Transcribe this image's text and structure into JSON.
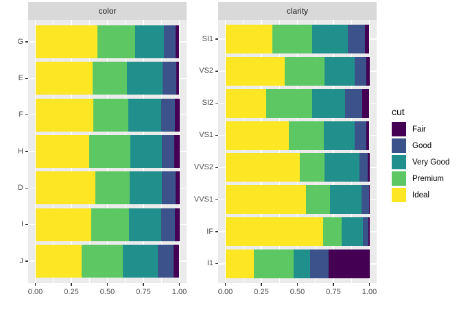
{
  "legend": {
    "title": "cut",
    "entries": [
      {
        "label": "Fair",
        "color": "#440154"
      },
      {
        "label": "Good",
        "color": "#3B528B"
      },
      {
        "label": "Very Good",
        "color": "#21908C"
      },
      {
        "label": "Premium",
        "color": "#5DC863"
      },
      {
        "label": "Ideal",
        "color": "#FDE725"
      }
    ]
  },
  "axes": {
    "x_tick_labels": [
      "0.00",
      "0.25",
      "0.50",
      "0.75",
      "1.00"
    ],
    "x_tick_values": [
      0,
      0.25,
      0.5,
      0.75,
      1
    ]
  },
  "colors": {
    "panel_bg": "#EBEBEB",
    "strip_bg": "#D9D9D9",
    "gridline": "#FFFFFF",
    "axis_text": "#4D4D4D",
    "tick_mark": "#333333"
  },
  "chart_data": [
    {
      "type": "bar",
      "orientation": "horizontal",
      "stack": "fill",
      "facet_title": "color",
      "legend_title": "cut",
      "xlim": [
        0,
        1
      ],
      "grid": "on",
      "categories": [
        "G",
        "E",
        "F",
        "H",
        "D",
        "I",
        "J"
      ],
      "series": [
        {
          "name": "Ideal",
          "values": [
            0.4325,
            0.3984,
            0.401,
            0.3751,
            0.4183,
            0.386,
            0.3191
          ]
        },
        {
          "name": "Premium",
          "values": [
            0.2589,
            0.2385,
            0.2443,
            0.2842,
            0.2366,
            0.2634,
            0.2877
          ]
        },
        {
          "name": "Very Good",
          "values": [
            0.2036,
            0.245,
            0.2268,
            0.2197,
            0.2233,
            0.2221,
            0.2415
          ]
        },
        {
          "name": "Good",
          "values": [
            0.0771,
            0.0952,
            0.0953,
            0.0845,
            0.0977,
            0.0963,
            0.1093
          ]
        },
        {
          "name": "Fair",
          "values": [
            0.0278,
            0.0229,
            0.0327,
            0.0365,
            0.0241,
            0.0323,
            0.0424
          ]
        }
      ]
    },
    {
      "type": "bar",
      "orientation": "horizontal",
      "stack": "fill",
      "facet_title": "clarity",
      "legend_title": "cut",
      "xlim": [
        0,
        1
      ],
      "grid": "on",
      "categories": [
        "SI1",
        "VS2",
        "SI2",
        "VS1",
        "VVS2",
        "VVS1",
        "IF",
        "I1"
      ],
      "series": [
        {
          "name": "Ideal",
          "values": [
            0.3277,
            0.4137,
            0.2826,
            0.4392,
            0.5144,
            0.56,
            0.6771,
            0.197
          ]
        },
        {
          "name": "Premium",
          "values": [
            0.2736,
            0.2739,
            0.3208,
            0.2434,
            0.1717,
            0.1685,
            0.1285,
            0.2767
          ]
        },
        {
          "name": "Very Good",
          "values": [
            0.248,
            0.2114,
            0.2284,
            0.2172,
            0.2438,
            0.2159,
            0.1497,
            0.1134
          ]
        },
        {
          "name": "Good",
          "values": [
            0.1194,
            0.0798,
            0.1176,
            0.0793,
            0.0565,
            0.0509,
            0.0397,
            0.1296
          ]
        },
        {
          "name": "Fair",
          "values": [
            0.0312,
            0.0213,
            0.0507,
            0.0208,
            0.0136,
            0.0047,
            0.005,
            0.2834
          ]
        }
      ]
    }
  ]
}
